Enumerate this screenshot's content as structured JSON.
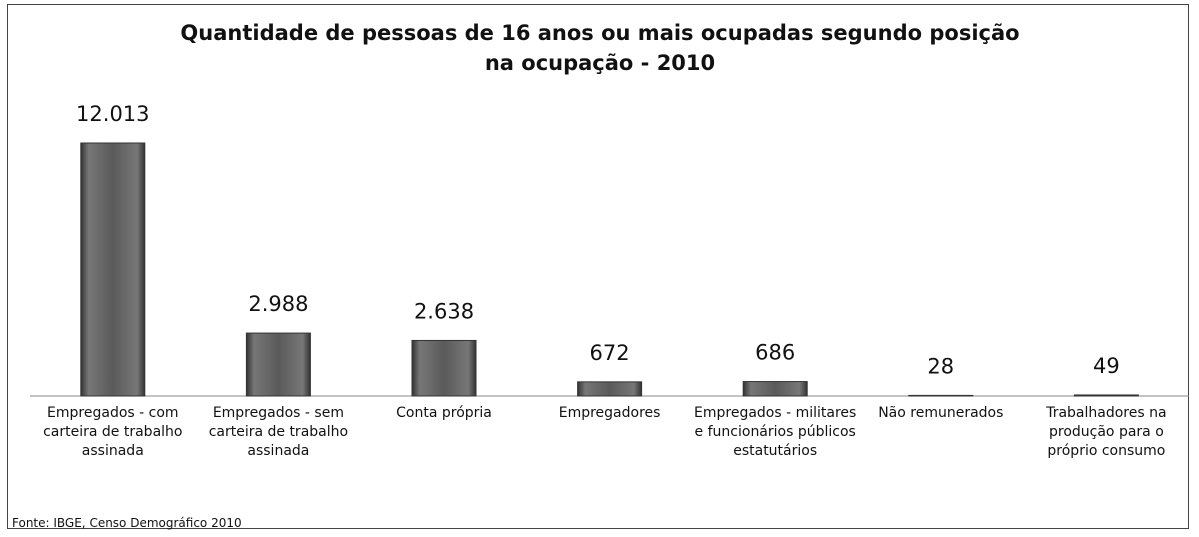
{
  "chart_data": {
    "type": "bar",
    "title": "Quantidade de pessoas de 16 anos ou mais ocupadas segundo posição na ocupação - 2010",
    "categories": [
      "Empregados - com carteira de trabalho assinada",
      "Empregados - sem carteira de trabalho assinada",
      "Conta própria",
      "Empregadores",
      "Empregados - militares e funcionários públicos estatutários",
      "Não remunerados",
      "Trabalhadores na produção para o próprio consumo"
    ],
    "values": [
      12013,
      2988,
      2638,
      672,
      686,
      28,
      49
    ],
    "value_labels": [
      "12.013",
      "2.988",
      "2.638",
      "672",
      "686",
      "28",
      "49"
    ],
    "color": "#5a5a5a",
    "source": "Fonte: IBGE, Censo Demográfico 2010"
  }
}
